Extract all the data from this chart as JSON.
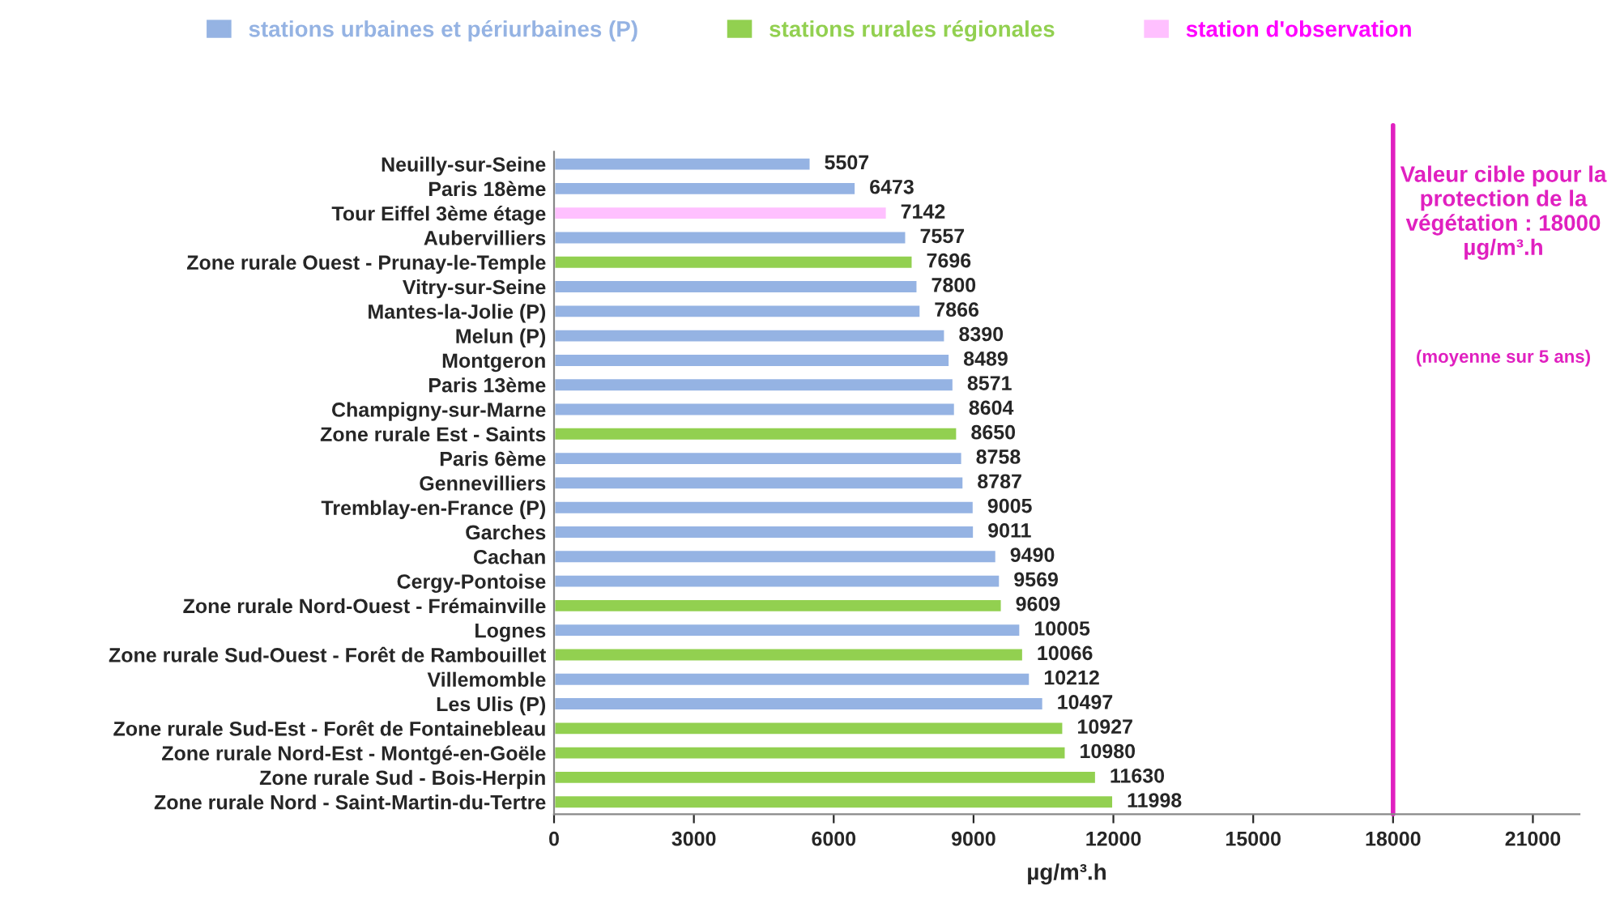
{
  "chart_data": {
    "type": "bar",
    "orientation": "horizontal",
    "categories": [
      "Neuilly-sur-Seine",
      "Paris 18ème",
      "Tour Eiffel 3ème étage",
      "Aubervilliers",
      "Zone rurale Ouest - Prunay-le-Temple",
      "Vitry-sur-Seine",
      "Mantes-la-Jolie (P)",
      "Melun (P)",
      "Montgeron",
      "Paris 13ème",
      "Champigny-sur-Marne",
      "Zone rurale Est - Saints",
      "Paris 6ème",
      "Gennevilliers",
      "Tremblay-en-France (P)",
      "Garches",
      "Cachan",
      "Cergy-Pontoise",
      "Zone rurale Nord-Ouest - Frémainville",
      "Lognes",
      "Zone rurale Sud-Ouest - Forêt de Rambouillet",
      "Villemomble",
      "Les Ulis (P)",
      "Zone rurale Sud-Est - Forêt de Fontainebleau",
      "Zone rurale Nord-Est - Montgé-en-Goële",
      "Zone rurale Sud - Bois-Herpin",
      "Zone rurale Nord - Saint-Martin-du-Tertre"
    ],
    "series": [
      {
        "name": "stations urbaines et périurbaines (P)",
        "color": "#95b3e3",
        "values": [
          5507,
          6473,
          null,
          7557,
          null,
          7800,
          7866,
          8390,
          8489,
          8571,
          8604,
          null,
          8758,
          8787,
          9005,
          9011,
          9490,
          9569,
          null,
          10005,
          null,
          10212,
          10497,
          null,
          null,
          null,
          null
        ]
      },
      {
        "name": "stations rurales régionales",
        "color": "#92d050",
        "values": [
          null,
          null,
          null,
          null,
          7696,
          null,
          null,
          null,
          null,
          null,
          null,
          8650,
          null,
          null,
          null,
          null,
          null,
          null,
          9609,
          null,
          10066,
          null,
          null,
          10927,
          10980,
          11630,
          11998
        ]
      },
      {
        "name": "station d'observation",
        "color": "#ffc0ff",
        "values": [
          null,
          null,
          7142,
          null,
          null,
          null,
          null,
          null,
          null,
          null,
          null,
          null,
          null,
          null,
          null,
          null,
          null,
          null,
          null,
          null,
          null,
          null,
          null,
          null,
          null,
          null,
          null
        ]
      }
    ],
    "data_labels": true,
    "xlabel": "µg/m³.h",
    "xlim": [
      0,
      22000
    ],
    "xticks": [
      0,
      3000,
      6000,
      9000,
      12000,
      15000,
      18000,
      21000
    ],
    "ref_lines": [
      {
        "axis": "x",
        "value": 18000,
        "label": "Valeur cible pour la protection de la végétation : 18000 µg/m³.h",
        "color": "#e020c0"
      }
    ],
    "annotations": [
      "(moyenne sur 5 ans)"
    ],
    "legend": "top",
    "grid": false
  }
}
